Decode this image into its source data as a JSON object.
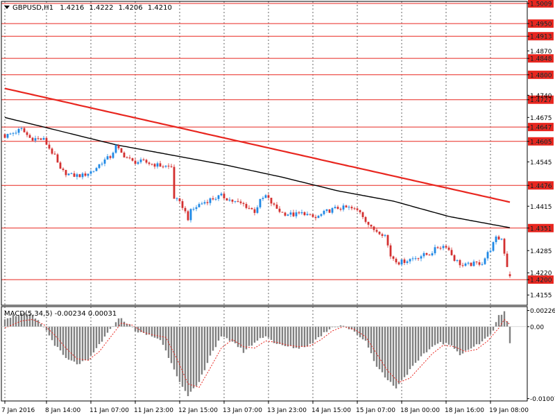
{
  "chart_data": [
    {
      "type": "candlestick",
      "header": {
        "arrow_icon": "triangle-down-icon",
        "symbol": "GBPUSD,H1",
        "open": "1.4216",
        "high": "1.4222",
        "low": "1.4206",
        "close": "1.4210"
      },
      "ylim": [
        1.4125,
        1.5015
      ],
      "y_ticks": [
        "1.5009",
        "1.4950",
        "1.4913",
        "1.4870",
        "1.4848",
        "1.4800",
        "1.4740",
        "1.4727",
        "1.4675",
        "1.4647",
        "1.4605",
        "1.4545",
        "1.4476",
        "1.4415",
        "1.4351",
        "1.4285",
        "1.4220",
        "1.4200",
        "1.4155"
      ],
      "horizontal_levels": [
        {
          "price": 1.5009,
          "label": "1.5009"
        },
        {
          "price": 1.495,
          "label": "1.4950"
        },
        {
          "price": 1.4913,
          "label": "1.4913"
        },
        {
          "price": 1.4848,
          "label": "1.4848"
        },
        {
          "price": 1.48,
          "label": "1.4800"
        },
        {
          "price": 1.4727,
          "label": "1.4727"
        },
        {
          "price": 1.4647,
          "label": "1.4647"
        },
        {
          "price": 1.4605,
          "label": "1.4605"
        },
        {
          "price": 1.4476,
          "label": "1.4476"
        },
        {
          "price": 1.4351,
          "label": "1.4351"
        },
        {
          "price": 1.42,
          "label": "1.4200"
        }
      ],
      "level_color": "#e8261f",
      "x_labels": [
        "7 Jan 2016",
        "8 Jan 14:00",
        "11 Jan 07:00",
        "11 Jan 23:00",
        "12 Jan 15:00",
        "13 Jan 07:00",
        "13 Jan 23:00",
        "14 Jan 15:00",
        "15 Jan 07:00",
        "18 Jan 00:00",
        "18 Jan 16:00",
        "19 Jan 08:00"
      ],
      "bar_count": 183,
      "close_anchors": [
        [
          0,
          1.462
        ],
        [
          6,
          1.464
        ],
        [
          9,
          1.4615
        ],
        [
          14,
          1.461
        ],
        [
          18,
          1.456
        ],
        [
          20,
          1.452
        ],
        [
          24,
          1.4505
        ],
        [
          28,
          1.4505
        ],
        [
          32,
          1.452
        ],
        [
          35,
          1.4545
        ],
        [
          38,
          1.456
        ],
        [
          40,
          1.459
        ],
        [
          42,
          1.457
        ],
        [
          46,
          1.4545
        ],
        [
          50,
          1.4545
        ],
        [
          55,
          1.4535
        ],
        [
          60,
          1.453
        ],
        [
          61,
          1.444
        ],
        [
          64,
          1.4415
        ],
        [
          66,
          1.438
        ],
        [
          67,
          1.44
        ],
        [
          70,
          1.442
        ],
        [
          74,
          1.4435
        ],
        [
          78,
          1.4445
        ],
        [
          82,
          1.443
        ],
        [
          86,
          1.442
        ],
        [
          90,
          1.44
        ],
        [
          92,
          1.443
        ],
        [
          94,
          1.4445
        ],
        [
          97,
          1.4415
        ],
        [
          100,
          1.4395
        ],
        [
          104,
          1.439
        ],
        [
          108,
          1.4395
        ],
        [
          110,
          1.4385
        ],
        [
          112,
          1.438
        ],
        [
          116,
          1.44
        ],
        [
          120,
          1.441
        ],
        [
          124,
          1.441
        ],
        [
          128,
          1.44
        ],
        [
          132,
          1.435
        ],
        [
          135,
          1.434
        ],
        [
          137,
          1.433
        ],
        [
          139,
          1.427
        ],
        [
          142,
          1.425
        ],
        [
          146,
          1.426
        ],
        [
          150,
          1.427
        ],
        [
          153,
          1.4275
        ],
        [
          156,
          1.4295
        ],
        [
          159,
          1.43
        ],
        [
          162,
          1.426
        ],
        [
          165,
          1.424
        ],
        [
          168,
          1.4245
        ],
        [
          172,
          1.425
        ],
        [
          175,
          1.429
        ],
        [
          177,
          1.432
        ],
        [
          179,
          1.432
        ],
        [
          181,
          1.424
        ],
        [
          182,
          1.421
        ]
      ],
      "series": [
        {
          "name": "",
          "color": "#e8261f",
          "values": [
            [
              0,
              1.476
            ],
            [
              60,
              1.465
            ],
            [
              120,
              1.454
            ],
            [
              182,
              1.4427
            ]
          ]
        },
        {
          "name": "",
          "color": "#000000",
          "values": [
            [
              0,
              1.4675
            ],
            [
              20,
              1.4635
            ],
            [
              40,
              1.4595
            ],
            [
              60,
              1.4565
            ],
            [
              80,
              1.4535
            ],
            [
              100,
              1.45
            ],
            [
              120,
              1.446
            ],
            [
              140,
              1.443
            ],
            [
              160,
              1.4385
            ],
            [
              182,
              1.4352
            ]
          ]
        }
      ],
      "up_color": "#1e88e5",
      "down_color": "#d32f2f"
    },
    {
      "type": "histogram",
      "title": "MACD(5,34,5) -0.00234 0.00031",
      "ylim": [
        -0.0104,
        0.0028
      ],
      "y_ticks": [
        "0.00226",
        "0.00",
        "-0.01007"
      ],
      "hist_anchors": [
        [
          0,
          0.0012
        ],
        [
          6,
          0.0018
        ],
        [
          10,
          0.0015
        ],
        [
          14,
          0.0
        ],
        [
          18,
          -0.0025
        ],
        [
          22,
          -0.0045
        ],
        [
          26,
          -0.0052
        ],
        [
          30,
          -0.0048
        ],
        [
          34,
          -0.0025
        ],
        [
          38,
          -0.0005
        ],
        [
          40,
          0.0008
        ],
        [
          42,
          0.0012
        ],
        [
          44,
          0.0005
        ],
        [
          48,
          -0.0008
        ],
        [
          52,
          -0.0012
        ],
        [
          56,
          -0.0018
        ],
        [
          60,
          -0.005
        ],
        [
          64,
          -0.0085
        ],
        [
          66,
          -0.0098
        ],
        [
          70,
          -0.0078
        ],
        [
          74,
          -0.004
        ],
        [
          78,
          -0.0015
        ],
        [
          82,
          -0.002
        ],
        [
          86,
          -0.0035
        ],
        [
          90,
          -0.0022
        ],
        [
          94,
          -0.0012
        ],
        [
          98,
          -0.0025
        ],
        [
          102,
          -0.0028
        ],
        [
          106,
          -0.003
        ],
        [
          110,
          -0.0025
        ],
        [
          114,
          -0.0012
        ],
        [
          118,
          0.0
        ],
        [
          122,
          0.0002
        ],
        [
          126,
          -0.0008
        ],
        [
          130,
          -0.002
        ],
        [
          134,
          -0.0055
        ],
        [
          138,
          -0.0075
        ],
        [
          141,
          -0.0085
        ],
        [
          144,
          -0.007
        ],
        [
          148,
          -0.0052
        ],
        [
          152,
          -0.0035
        ],
        [
          156,
          -0.0022
        ],
        [
          160,
          -0.0025
        ],
        [
          164,
          -0.0038
        ],
        [
          168,
          -0.003
        ],
        [
          172,
          -0.0022
        ],
        [
          176,
          -0.0005
        ],
        [
          178,
          0.0015
        ],
        [
          180,
          0.0022
        ],
        [
          181,
          0.0008
        ],
        [
          182,
          -0.0023
        ]
      ],
      "signal_anchors": [
        [
          0,
          -0.0002
        ],
        [
          6,
          0.0008
        ],
        [
          10,
          0.001
        ],
        [
          14,
          0.0003
        ],
        [
          18,
          -0.0012
        ],
        [
          22,
          -0.003
        ],
        [
          26,
          -0.0045
        ],
        [
          30,
          -0.0047
        ],
        [
          34,
          -0.0035
        ],
        [
          38,
          -0.0015
        ],
        [
          42,
          0.0005
        ],
        [
          46,
          0.0002
        ],
        [
          50,
          -0.0008
        ],
        [
          54,
          -0.0012
        ],
        [
          58,
          -0.0015
        ],
        [
          62,
          -0.0045
        ],
        [
          66,
          -0.008
        ],
        [
          70,
          -0.0085
        ],
        [
          74,
          -0.0058
        ],
        [
          78,
          -0.003
        ],
        [
          82,
          -0.0018
        ],
        [
          86,
          -0.0028
        ],
        [
          90,
          -0.003
        ],
        [
          94,
          -0.002
        ],
        [
          98,
          -0.0022
        ],
        [
          102,
          -0.0026
        ],
        [
          106,
          -0.0028
        ],
        [
          110,
          -0.0027
        ],
        [
          114,
          -0.0018
        ],
        [
          118,
          -0.0006
        ],
        [
          122,
          0.0
        ],
        [
          126,
          -0.0004
        ],
        [
          130,
          -0.0014
        ],
        [
          134,
          -0.0038
        ],
        [
          138,
          -0.0062
        ],
        [
          142,
          -0.0078
        ],
        [
          146,
          -0.0072
        ],
        [
          150,
          -0.0055
        ],
        [
          154,
          -0.0038
        ],
        [
          158,
          -0.0026
        ],
        [
          162,
          -0.0028
        ],
        [
          166,
          -0.0035
        ],
        [
          170,
          -0.0032
        ],
        [
          174,
          -0.002
        ],
        [
          178,
          -0.0002
        ],
        [
          180,
          0.001
        ],
        [
          182,
          0.0003
        ]
      ],
      "bar_color": "#808080",
      "signal_color": "#e8261f"
    }
  ]
}
